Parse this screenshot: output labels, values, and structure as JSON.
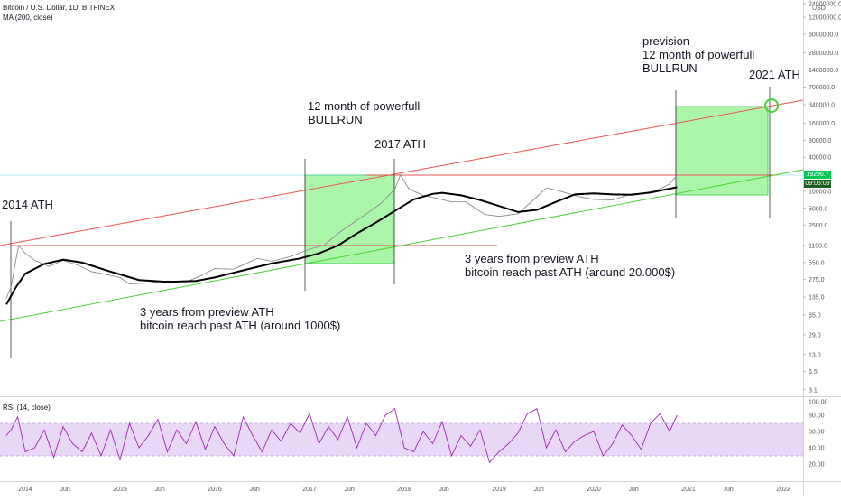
{
  "header": {
    "symbol": "Bitcoin / U.S. Dollar, 1D, BITFINEX",
    "indicator": "MA (200, close)",
    "currency": "USD",
    "rsi_label": "RSI (14, close)"
  },
  "price_tags": {
    "last": "19296.7",
    "countdown": "09:05:09"
  },
  "annotations": {
    "ath2014": "2014 ATH",
    "ath2017": "2017 ATH",
    "ath2021": "2021 ATH",
    "bullrun1_l1": "12 month of powerfull",
    "bullrun1_l2": "BULLRUN",
    "prevision_l1": "prevision",
    "prevision_l2": "12 month of powerfull",
    "prevision_l3": "BULLRUN",
    "note1000_l1": "3 years from preview ATH",
    "note1000_l2": "bitcoin reach past ATH (around 1000$)",
    "note20000_l1": "3 years from preview ATH",
    "note20000_l2": "bitcoin reach past ATH (around 20.000$)"
  },
  "colors": {
    "price": "#8a8a8a",
    "ma": "#000000",
    "red_line": "#ef5350",
    "green_line": "#4cd137",
    "box_fill": "#66ee66",
    "rsi": "#9c27b0",
    "rsi_band": "#e8d7f5"
  },
  "chart_data": [
    {
      "type": "line",
      "title": "Bitcoin / U.S. Dollar, 1D, BITFINEX",
      "scale": "log",
      "ylim": [
        3.1,
        24000000.0
      ],
      "y_ticks": [
        24000000.0,
        12000000.0,
        6000000.0,
        2800000.0,
        1400000.0,
        700000.0,
        340000.0,
        160000.0,
        80000.0,
        40000.0,
        19296.7,
        10000.0,
        5000.0,
        2500.0,
        1100.0,
        550.0,
        275.0,
        135.0,
        65.0,
        29.0,
        13.0,
        6.5,
        3.1
      ],
      "y_tick_labels": [
        "24000000.0",
        "12000000.0",
        "6000000.0",
        "2800000.0",
        "1400000.0",
        "700000.0",
        "340000.0",
        "160000.0",
        "80000.0",
        "40000.0",
        "19296.7",
        "10000.0",
        "5000.0",
        "2500.0",
        "1100.0",
        "550.0",
        "275.0",
        "135.0",
        "65.0",
        "29.0",
        "13.0",
        "6.5",
        "3.1"
      ],
      "x_tick_labels": [
        "2014",
        "Jun",
        "2015",
        "Jun",
        "2016",
        "Jun",
        "2017",
        "Jun",
        "2018",
        "Jun",
        "2019",
        "Jun",
        "2020",
        "Jun",
        "2021",
        "Jun",
        "2022"
      ],
      "x_ticks": [
        2014.0,
        2014.42,
        2015.0,
        2015.42,
        2016.0,
        2016.42,
        2017.0,
        2017.42,
        2018.0,
        2018.42,
        2019.0,
        2019.42,
        2020.0,
        2020.42,
        2021.0,
        2021.42,
        2022.0
      ],
      "xlim": [
        2013.8,
        2022.5
      ],
      "series": [
        {
          "name": "BTCUSD",
          "x": [
            2013.8,
            2013.85,
            2013.9,
            2013.93,
            2014.0,
            2014.1,
            2014.25,
            2014.4,
            2014.55,
            2014.7,
            2014.85,
            2015.0,
            2015.1,
            2015.3,
            2015.5,
            2015.7,
            2015.85,
            2016.0,
            2016.2,
            2016.45,
            2016.6,
            2016.8,
            2017.0,
            2017.15,
            2017.3,
            2017.45,
            2017.6,
            2017.75,
            2017.9,
            2017.96,
            2018.05,
            2018.2,
            2018.35,
            2018.5,
            2018.65,
            2018.85,
            2019.0,
            2019.2,
            2019.4,
            2019.5,
            2019.65,
            2019.85,
            2020.0,
            2020.2,
            2020.4,
            2020.55,
            2020.7,
            2020.8,
            2020.88
          ],
          "values": [
            130,
            200,
            600,
            1100,
            800,
            600,
            470,
            600,
            500,
            380,
            340,
            300,
            230,
            240,
            260,
            250,
            320,
            430,
            420,
            650,
            580,
            700,
            950,
            1100,
            1800,
            2700,
            4000,
            6000,
            11000,
            19500,
            11000,
            8500,
            7500,
            6500,
            6500,
            3900,
            3600,
            4000,
            8000,
            11500,
            10000,
            8000,
            7200,
            7000,
            9000,
            9300,
            11000,
            13500,
            19296.7
          ]
        },
        {
          "name": "MA (200, close)",
          "x": [
            2013.8,
            2013.9,
            2014.0,
            2014.2,
            2014.4,
            2014.6,
            2014.9,
            2015.2,
            2015.5,
            2015.8,
            2016.0,
            2016.3,
            2016.6,
            2016.9,
            2017.1,
            2017.3,
            2017.5,
            2017.7,
            2017.9,
            2018.1,
            2018.3,
            2018.4,
            2018.6,
            2018.8,
            2019.0,
            2019.2,
            2019.4,
            2019.6,
            2019.8,
            2020.0,
            2020.2,
            2020.4,
            2020.6,
            2020.88
          ],
          "values": [
            100,
            200,
            350,
            520,
            620,
            550,
            380,
            270,
            250,
            260,
            300,
            400,
            530,
            650,
            800,
            1100,
            1800,
            2800,
            4500,
            7200,
            9000,
            9400,
            8500,
            7000,
            5500,
            4300,
            4700,
            6500,
            8800,
            9200,
            8800,
            8700,
            9500,
            11800
          ]
        }
      ]
    },
    {
      "type": "line",
      "title": "RSI (14, close)",
      "ylim": [
        5,
        100
      ],
      "y_ticks": [
        100,
        80,
        60,
        40,
        20
      ],
      "y_tick_labels": [
        "100.00",
        "80.00",
        "60.00",
        "40.00",
        "20.00"
      ],
      "band": [
        30,
        70
      ],
      "series": [
        {
          "name": "RSI",
          "x": [
            2013.8,
            2013.85,
            2013.92,
            2014.0,
            2014.1,
            2014.2,
            2014.3,
            2014.4,
            2014.5,
            2014.6,
            2014.7,
            2014.8,
            2014.9,
            2015.0,
            2015.1,
            2015.2,
            2015.3,
            2015.4,
            2015.5,
            2015.6,
            2015.7,
            2015.8,
            2015.9,
            2016.0,
            2016.1,
            2016.2,
            2016.3,
            2016.4,
            2016.5,
            2016.6,
            2016.7,
            2016.8,
            2016.9,
            2017.0,
            2017.1,
            2017.2,
            2017.3,
            2017.4,
            2017.5,
            2017.6,
            2017.7,
            2017.8,
            2017.9,
            2018.0,
            2018.1,
            2018.2,
            2018.3,
            2018.4,
            2018.5,
            2018.6,
            2018.7,
            2018.8,
            2018.9,
            2019.0,
            2019.1,
            2019.2,
            2019.3,
            2019.4,
            2019.5,
            2019.6,
            2019.7,
            2019.8,
            2019.9,
            2020.0,
            2020.1,
            2020.2,
            2020.3,
            2020.4,
            2020.5,
            2020.6,
            2020.7,
            2020.8,
            2020.88
          ],
          "values": [
            55,
            62,
            78,
            35,
            40,
            62,
            28,
            66,
            45,
            35,
            58,
            30,
            62,
            25,
            70,
            40,
            55,
            75,
            35,
            62,
            45,
            72,
            38,
            66,
            45,
            30,
            78,
            55,
            35,
            62,
            48,
            70,
            58,
            82,
            45,
            66,
            50,
            78,
            40,
            70,
            55,
            80,
            88,
            40,
            35,
            60,
            45,
            72,
            30,
            55,
            42,
            62,
            22,
            35,
            45,
            58,
            82,
            88,
            40,
            62,
            35,
            48,
            55,
            60,
            30,
            45,
            68,
            55,
            38,
            70,
            82,
            60,
            80
          ]
        }
      ]
    }
  ]
}
